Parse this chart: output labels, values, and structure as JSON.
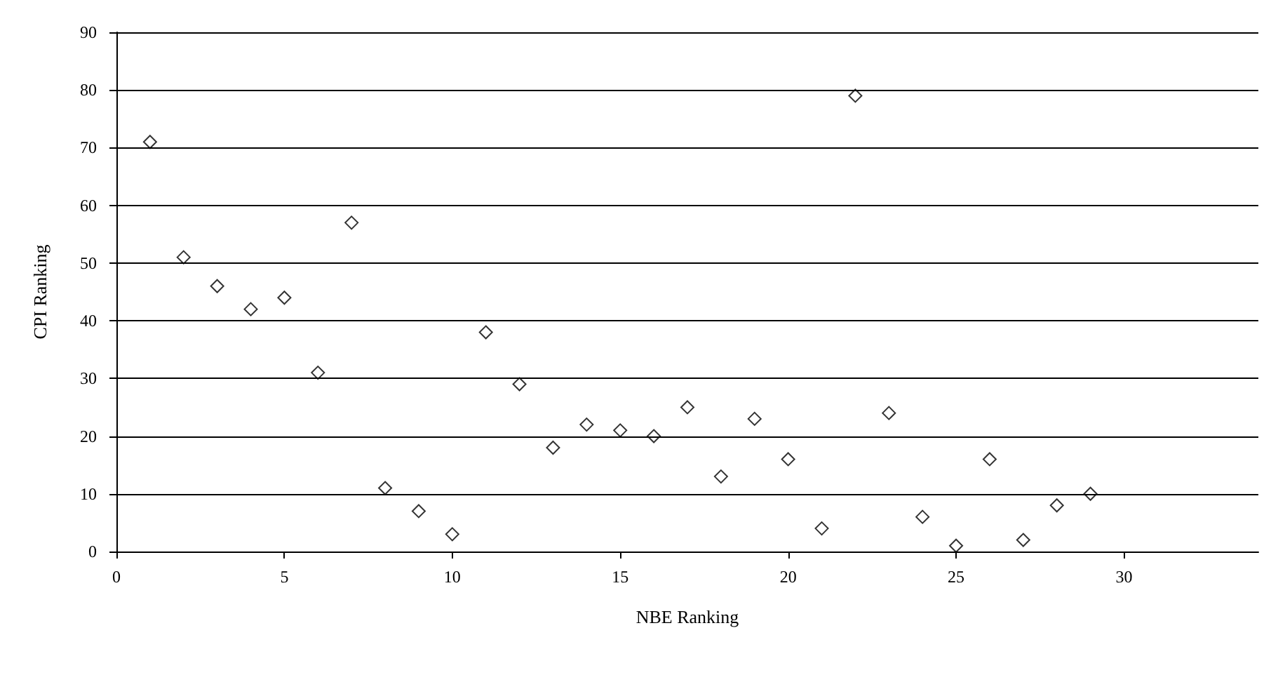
{
  "chart_data": {
    "type": "scatter",
    "xlabel": "NBE Ranking",
    "ylabel": "CPI Ranking",
    "x": [
      1,
      2,
      3,
      4,
      5,
      6,
      7,
      8,
      9,
      10,
      11,
      12,
      13,
      14,
      15,
      16,
      17,
      18,
      19,
      20,
      21,
      22,
      23,
      24,
      25,
      26,
      27,
      28,
      29
    ],
    "series": [
      {
        "color": "#000000",
        "values": [
          71,
          51,
          46,
          42,
          44,
          31,
          57,
          11,
          7,
          3,
          38,
          29,
          18,
          22,
          21,
          20,
          25,
          13,
          23,
          16,
          4,
          79,
          24,
          6,
          1,
          16,
          2,
          8,
          10
        ]
      }
    ],
    "xlim": [
      0,
      34
    ],
    "xticks": [
      0,
      5,
      10,
      15,
      20,
      25,
      30
    ],
    "ylim": [
      0,
      90
    ],
    "yticks": [
      0,
      10,
      20,
      30,
      40,
      50,
      60,
      70,
      80,
      90
    ],
    "grid": "y",
    "marker": "diamond"
  }
}
